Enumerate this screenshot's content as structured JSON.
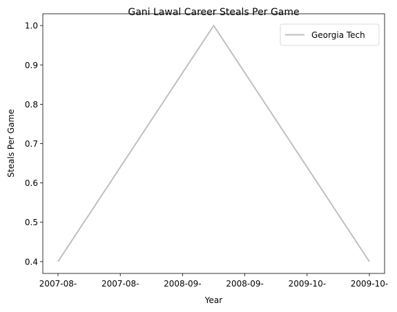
{
  "chart_data": {
    "type": "line",
    "title": "Gani Lawal Career Steals Per Game",
    "xlabel": "Year",
    "ylabel": "Steals Per Game",
    "x": [
      "2007-08",
      "2008-09",
      "2009-10"
    ],
    "xticks": [
      "2007-08-",
      "2007-08-",
      "2008-09-",
      "2008-09-",
      "2009-10-",
      "2009-10-"
    ],
    "yticks": [
      "0.4",
      "0.5",
      "0.6",
      "0.7",
      "0.8",
      "0.9",
      "1.0"
    ],
    "ylim": [
      0.37,
      1.03
    ],
    "grid": false,
    "legend_position": "top-right",
    "series": [
      {
        "name": "Georgia Tech",
        "values": [
          0.4,
          1.0,
          0.4
        ],
        "color": "#bfbfbf"
      }
    ]
  }
}
